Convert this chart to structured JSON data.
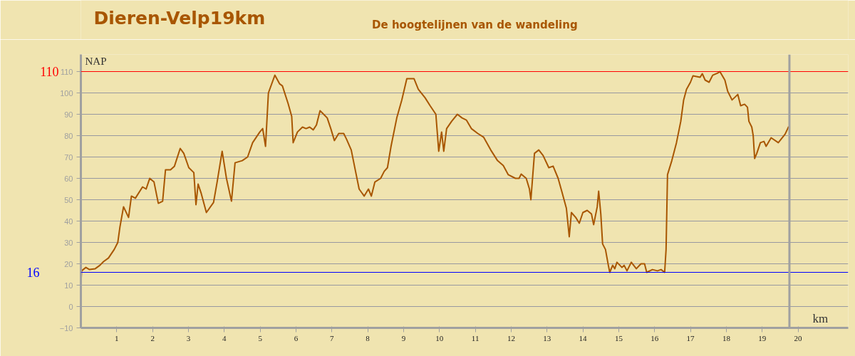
{
  "chart_data": {
    "type": "line",
    "title": "Dieren-Velp19km",
    "subtitle": "De hoogtelijnen van de wandeling",
    "xlabel": "km",
    "ylabel": "NAP",
    "xlim": [
      0,
      21.4
    ],
    "ylim": [
      -10,
      118
    ],
    "xticks": [
      1,
      2,
      3,
      4,
      5,
      6,
      7,
      8,
      9,
      10,
      11,
      12,
      13,
      14,
      15,
      16,
      17,
      18,
      19,
      20
    ],
    "yticks": [
      -10,
      0,
      10,
      20,
      30,
      40,
      50,
      60,
      70,
      80,
      90,
      100,
      110
    ],
    "grid": "y",
    "ref_lines": [
      {
        "axis": "y",
        "value": 110,
        "label": "110",
        "color": "#ff0000"
      },
      {
        "axis": "y",
        "value": 16,
        "label": "16",
        "color": "#0000ff"
      },
      {
        "axis": "x",
        "value": 19.76,
        "label": null,
        "color": "#a0a0a0"
      }
    ],
    "series": [
      {
        "color": "#a85600",
        "x": [
          0,
          0.02,
          0.14,
          0.24,
          0.4,
          0.53,
          0.63,
          0.77,
          0.93,
          1.03,
          1.09,
          1.19,
          1.33,
          1.41,
          1.52,
          1.72,
          1.82,
          1.92,
          2.04,
          2.16,
          2.28,
          2.36,
          2.5,
          2.61,
          2.77,
          2.87,
          3.01,
          3.15,
          3.21,
          3.27,
          3.35,
          3.5,
          3.7,
          3.8,
          3.94,
          4.06,
          4.2,
          4.3,
          4.5,
          4.65,
          4.79,
          4.99,
          5.07,
          5.15,
          5.23,
          5.41,
          5.54,
          5.62,
          5.78,
          5.88,
          5.92,
          6.04,
          6.18,
          6.28,
          6.38,
          6.48,
          6.57,
          6.67,
          6.77,
          6.87,
          6.97,
          7.07,
          7.19,
          7.33,
          7.41,
          7.54,
          7.66,
          7.76,
          7.9,
          8.02,
          8.1,
          8.2,
          8.36,
          8.46,
          8.55,
          8.65,
          8.81,
          8.95,
          9.09,
          9.29,
          9.41,
          9.6,
          9.74,
          9.9,
          9.98,
          10.06,
          10.12,
          10.2,
          10.34,
          10.5,
          10.63,
          10.75,
          10.89,
          11.07,
          11.23,
          11.43,
          11.62,
          11.78,
          11.92,
          12.12,
          12.22,
          12.28,
          12.42,
          12.51,
          12.55,
          12.65,
          12.77,
          12.89,
          13.05,
          13.17,
          13.31,
          13.41,
          13.54,
          13.62,
          13.68,
          13.8,
          13.9,
          14,
          14.12,
          14.24,
          14.3,
          14.4,
          14.44,
          14.5,
          14.55,
          14.63,
          14.71,
          14.75,
          14.83,
          14.89,
          14.95,
          15.09,
          15.15,
          15.23,
          15.35,
          15.49,
          15.62,
          15.72,
          15.78,
          15.94,
          16.08,
          16.18,
          16.28,
          16.32,
          16.36,
          16.48,
          16.61,
          16.73,
          16.81,
          16.89,
          17,
          17.07,
          17.27,
          17.33,
          17.41,
          17.52,
          17.62,
          17.76,
          17.82,
          17.96,
          18.04,
          18.16,
          18.26,
          18.32,
          18.4,
          18.51,
          18.59,
          18.63,
          18.71,
          18.75,
          18.79,
          18.85,
          18.95,
          19.05,
          19.11,
          19.25,
          19.45,
          19.64,
          19.74
        ],
        "values": [
          10,
          16.7,
          18.3,
          17.3,
          17.7,
          19.3,
          21,
          22.7,
          26.7,
          30,
          37.3,
          46.7,
          41.7,
          51.7,
          50.7,
          56,
          55,
          60,
          58.3,
          48.3,
          49.3,
          64,
          64,
          65.7,
          74,
          71.7,
          65,
          62.7,
          47.7,
          57.3,
          53.3,
          44,
          48.7,
          58.3,
          72.7,
          60,
          49.3,
          67.3,
          68.3,
          70,
          76.7,
          81.7,
          83.3,
          75,
          100,
          108.3,
          104.3,
          103.3,
          95,
          89,
          76.7,
          81.7,
          84,
          83.3,
          84,
          82.7,
          85,
          91.7,
          90,
          88.3,
          83.3,
          77.7,
          81,
          81,
          78.3,
          73.3,
          63.3,
          55,
          51.7,
          55,
          51.7,
          58.3,
          60,
          63.3,
          65,
          75,
          88.3,
          96.7,
          106.7,
          106.7,
          101.7,
          97.7,
          94,
          90,
          72.7,
          81.7,
          72.7,
          83.3,
          86.7,
          90,
          88.3,
          87.3,
          83.3,
          81,
          79.3,
          73.3,
          68.3,
          66,
          61.7,
          60,
          60,
          62,
          60,
          55,
          50,
          71.7,
          73.3,
          70.7,
          65,
          65.7,
          60,
          54,
          46,
          32.7,
          44,
          41.7,
          39,
          44,
          45,
          43.3,
          38.3,
          46.7,
          54,
          43.3,
          29.3,
          26.7,
          19.3,
          16,
          19.3,
          17.7,
          20.7,
          18.3,
          19.3,
          16.7,
          20.7,
          17.7,
          20,
          20,
          16,
          17.3,
          16.7,
          17.3,
          16,
          26.7,
          61.7,
          68.3,
          76.7,
          86.7,
          96.7,
          101.7,
          105,
          108,
          107.3,
          109,
          106,
          105,
          108.3,
          109.3,
          110,
          106,
          100.7,
          96.7,
          98.3,
          99.3,
          94,
          94.7,
          93.3,
          86.7,
          84,
          80,
          69.3,
          71.7,
          76.7,
          77.3,
          75,
          79,
          76.7,
          80.7,
          84.3
        ]
      }
    ]
  }
}
